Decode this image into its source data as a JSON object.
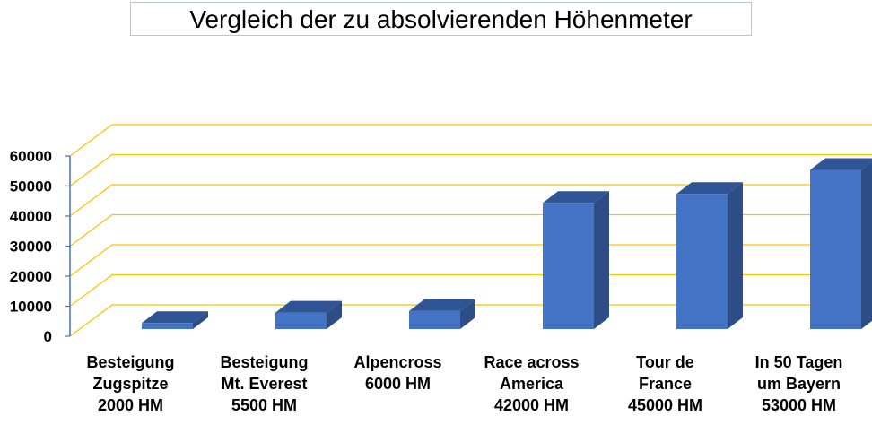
{
  "chart_data": {
    "type": "bar",
    "title": "Vergleich der zu absolvierenden Höhenmeter",
    "categories": [
      [
        "Besteigung",
        "Zugspitze",
        "2000 HM"
      ],
      [
        "Besteigung",
        "Mt. Everest",
        "5500 HM"
      ],
      [
        "Alpencross",
        "6000 HM"
      ],
      [
        "Race across",
        "America",
        "42000 HM"
      ],
      [
        "Tour de",
        "France",
        "45000 HM"
      ],
      [
        "In 50 Tagen",
        "um Bayern",
        "53000 HM"
      ]
    ],
    "values": [
      2000,
      5500,
      6000,
      42000,
      45000,
      53000
    ],
    "yticks": [
      "0",
      "10000",
      "20000",
      "30000",
      "40000",
      "50000",
      "60000"
    ],
    "ylim": [
      0,
      60000
    ],
    "grid": true,
    "colors": {
      "bar_front": "#4472c4",
      "bar_top": "#2f5597",
      "bar_side": "#2e4c86",
      "grid": "#ffc000",
      "axis": "#4472c4"
    }
  }
}
